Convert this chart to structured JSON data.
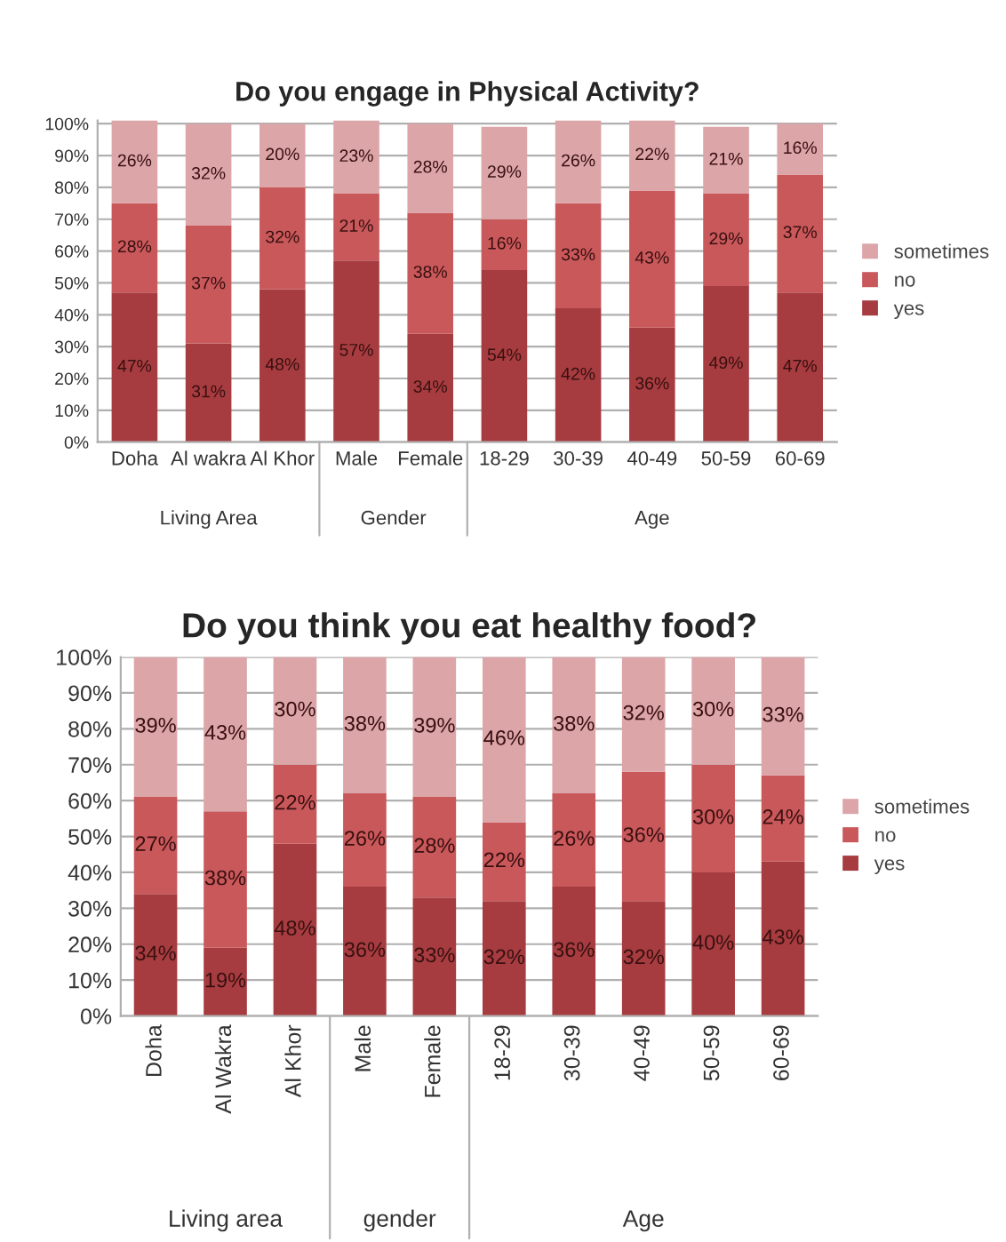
{
  "chart_data": [
    {
      "type": "bar",
      "stacked": true,
      "title": "Do you engage in Physical Activity?",
      "categories": [
        "Doha",
        "Al wakra",
        "Al Khor",
        "Male",
        "Female",
        "18-29",
        "30-39",
        "40-49",
        "50-59",
        "60-69"
      ],
      "series": [
        {
          "name": "yes",
          "color": "#a63c40",
          "values": [
            47,
            31,
            48,
            57,
            34,
            54,
            42,
            36,
            49,
            47
          ],
          "value_labels": [
            "47%",
            "31%",
            "48%",
            "57%",
            "34%",
            "54%",
            "42%",
            "36%",
            "49%",
            "47%"
          ]
        },
        {
          "name": "no",
          "color": "#c9585b",
          "values": [
            28,
            37,
            32,
            21,
            38,
            16,
            33,
            43,
            29,
            37
          ],
          "value_labels": [
            "28%",
            "37%",
            "32%",
            "21%",
            "38%",
            "16%",
            "33%",
            "43%",
            "29%",
            "37%"
          ]
        },
        {
          "name": "sometimes",
          "color": "#dca5a8",
          "values": [
            26,
            32,
            20,
            23,
            28,
            29,
            26,
            22,
            21,
            16
          ],
          "value_labels": [
            "26%",
            "32%",
            "20%",
            "23%",
            "28%",
            "29%",
            "26%",
            "22%",
            "21%",
            "16%"
          ]
        }
      ],
      "ylim": [
        0,
        101
      ],
      "yticks": [
        {
          "value": 0,
          "label": "0%"
        },
        {
          "value": 10,
          "label": "10%"
        },
        {
          "value": 20,
          "label": "20%"
        },
        {
          "value": 30,
          "label": "30%"
        },
        {
          "value": 40,
          "label": "40%"
        },
        {
          "value": 50,
          "label": "50%"
        },
        {
          "value": 60,
          "label": "60%"
        },
        {
          "value": 70,
          "label": "70%"
        },
        {
          "value": 80,
          "label": "80%"
        },
        {
          "value": 90,
          "label": "90%"
        },
        {
          "value": 100,
          "label": "100%"
        }
      ],
      "grid": "y",
      "legend": "right",
      "annotations": [
        "Living Area",
        "Gender",
        "Age"
      ]
    },
    {
      "type": "bar",
      "stacked": true,
      "title": "Do you think you eat healthy food?",
      "categories": [
        "Doha",
        "Al Wakra",
        "Al Khor",
        "Male",
        "Female",
        "18-29",
        "30-39",
        "40-49",
        "50-59",
        "60-69"
      ],
      "series": [
        {
          "name": "yes",
          "color": "#a63c40",
          "values": [
            34,
            19,
            48,
            36,
            33,
            32,
            36,
            32,
            40,
            43
          ],
          "value_labels": [
            "34%",
            "19%",
            "48%",
            "36%",
            "33%",
            "32%",
            "36%",
            "32%",
            "40%",
            "43%"
          ]
        },
        {
          "name": "no",
          "color": "#c9585b",
          "values": [
            27,
            38,
            22,
            26,
            28,
            22,
            26,
            36,
            30,
            24
          ],
          "value_labels": [
            "27%",
            "38%",
            "22%",
            "26%",
            "28%",
            "22%",
            "26%",
            "36%",
            "30%",
            "24%"
          ]
        },
        {
          "name": "sometimes",
          "color": "#dca5a8",
          "values": [
            39,
            43,
            30,
            38,
            39,
            46,
            38,
            32,
            30,
            33
          ],
          "value_labels": [
            "39%",
            "43%",
            "30%",
            "38%",
            "39%",
            "46%",
            "38%",
            "32%",
            "30%",
            "33%"
          ]
        }
      ],
      "ylim": [
        0,
        100
      ],
      "yticks": [
        {
          "value": 0,
          "label": "0%"
        },
        {
          "value": 10,
          "label": "10%"
        },
        {
          "value": 20,
          "label": "20%"
        },
        {
          "value": 30,
          "label": "30%"
        },
        {
          "value": 40,
          "label": "40%"
        },
        {
          "value": 50,
          "label": "50%"
        },
        {
          "value": 60,
          "label": "60%"
        },
        {
          "value": 70,
          "label": "70%"
        },
        {
          "value": 80,
          "label": "80%"
        },
        {
          "value": 90,
          "label": "90%"
        },
        {
          "value": 100,
          "label": "100%"
        }
      ],
      "grid": "y",
      "legend": "right",
      "annotations": [
        "Living area",
        "gender",
        "Age"
      ]
    }
  ]
}
